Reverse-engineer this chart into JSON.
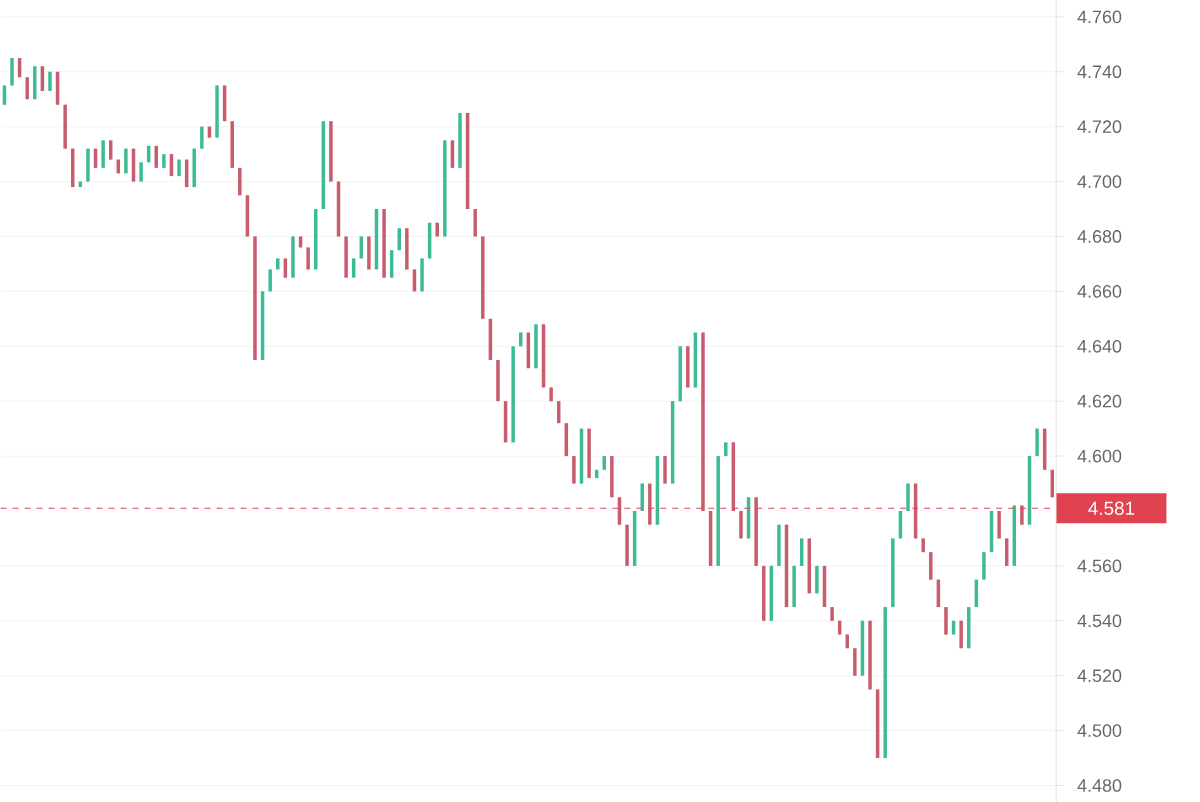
{
  "chart_data": {
    "type": "candlestick",
    "categories": [
      null,
      null,
      null,
      null,
      null,
      null,
      null,
      null,
      null,
      null,
      null,
      null,
      null,
      null,
      null,
      null,
      null,
      null,
      null,
      null,
      null,
      null,
      null,
      null,
      null,
      null,
      null,
      null,
      null,
      null,
      null,
      null,
      null,
      null,
      null,
      null,
      null,
      null,
      null,
      null,
      null,
      null,
      null,
      null,
      null,
      null,
      null,
      null,
      null,
      null,
      null,
      null,
      null,
      null,
      null,
      null,
      null,
      null,
      null,
      null,
      null,
      null,
      null,
      null,
      null,
      null,
      null,
      null,
      null,
      null,
      null,
      null,
      null,
      null,
      null,
      null,
      null,
      null,
      null,
      null,
      null,
      null,
      null,
      null,
      null,
      null,
      null,
      null,
      null,
      null,
      null,
      null,
      null,
      null,
      null,
      null,
      null,
      null,
      null,
      null,
      null,
      null,
      null,
      null,
      null,
      null,
      null,
      null,
      null,
      null,
      null,
      null,
      null,
      null,
      null,
      null,
      null,
      null,
      null,
      null,
      null,
      null,
      null,
      null,
      null,
      null,
      null,
      null,
      null,
      null,
      null,
      null,
      null,
      null,
      null,
      null,
      null,
      null,
      null
    ],
    "ohlc": [
      [
        4.728,
        4.735,
        4.728,
        4.735
      ],
      [
        4.735,
        4.745,
        4.735,
        4.745
      ],
      [
        4.745,
        4.745,
        4.738,
        4.738
      ],
      [
        4.738,
        4.738,
        4.73,
        4.73
      ],
      [
        4.73,
        4.742,
        4.73,
        4.742
      ],
      [
        4.742,
        4.742,
        4.733,
        4.733
      ],
      [
        4.733,
        4.74,
        4.733,
        4.74
      ],
      [
        4.74,
        4.74,
        4.728,
        4.728
      ],
      [
        4.728,
        4.728,
        4.712,
        4.712
      ],
      [
        4.712,
        4.712,
        4.698,
        4.698
      ],
      [
        4.698,
        4.7,
        4.698,
        4.7
      ],
      [
        4.7,
        4.712,
        4.7,
        4.712
      ],
      [
        4.712,
        4.712,
        4.705,
        4.705
      ],
      [
        4.705,
        4.715,
        4.705,
        4.715
      ],
      [
        4.715,
        4.715,
        4.708,
        4.708
      ],
      [
        4.708,
        4.708,
        4.703,
        4.703
      ],
      [
        4.703,
        4.712,
        4.703,
        4.712
      ],
      [
        4.712,
        4.712,
        4.7,
        4.7
      ],
      [
        4.7,
        4.707,
        4.7,
        4.707
      ],
      [
        4.707,
        4.713,
        4.707,
        4.713
      ],
      [
        4.713,
        4.713,
        4.705,
        4.705
      ],
      [
        4.705,
        4.71,
        4.705,
        4.71
      ],
      [
        4.71,
        4.71,
        4.702,
        4.702
      ],
      [
        4.702,
        4.708,
        4.702,
        4.708
      ],
      [
        4.708,
        4.708,
        4.698,
        4.698
      ],
      [
        4.698,
        4.712,
        4.698,
        4.712
      ],
      [
        4.712,
        4.72,
        4.712,
        4.72
      ],
      [
        4.72,
        4.72,
        4.716,
        4.716
      ],
      [
        4.716,
        4.735,
        4.716,
        4.735
      ],
      [
        4.735,
        4.735,
        4.722,
        4.722
      ],
      [
        4.722,
        4.722,
        4.705,
        4.705
      ],
      [
        4.705,
        4.705,
        4.695,
        4.695
      ],
      [
        4.695,
        4.695,
        4.68,
        4.68
      ],
      [
        4.68,
        4.68,
        4.635,
        4.635
      ],
      [
        4.635,
        4.66,
        4.635,
        4.66
      ],
      [
        4.66,
        4.668,
        4.66,
        4.668
      ],
      [
        4.668,
        4.672,
        4.668,
        4.672
      ],
      [
        4.672,
        4.672,
        4.665,
        4.665
      ],
      [
        4.665,
        4.68,
        4.665,
        4.68
      ],
      [
        4.68,
        4.68,
        4.676,
        4.676
      ],
      [
        4.676,
        4.676,
        4.668,
        4.668
      ],
      [
        4.668,
        4.69,
        4.668,
        4.69
      ],
      [
        4.69,
        4.722,
        4.69,
        4.722
      ],
      [
        4.722,
        4.722,
        4.7,
        4.7
      ],
      [
        4.7,
        4.7,
        4.68,
        4.68
      ],
      [
        4.68,
        4.68,
        4.665,
        4.665
      ],
      [
        4.665,
        4.672,
        4.665,
        4.672
      ],
      [
        4.672,
        4.68,
        4.672,
        4.68
      ],
      [
        4.68,
        4.68,
        4.668,
        4.668
      ],
      [
        4.668,
        4.69,
        4.668,
        4.69
      ],
      [
        4.69,
        4.69,
        4.665,
        4.665
      ],
      [
        4.665,
        4.675,
        4.665,
        4.675
      ],
      [
        4.675,
        4.683,
        4.675,
        4.683
      ],
      [
        4.683,
        4.683,
        4.668,
        4.668
      ],
      [
        4.668,
        4.668,
        4.66,
        4.66
      ],
      [
        4.66,
        4.672,
        4.66,
        4.672
      ],
      [
        4.672,
        4.685,
        4.672,
        4.685
      ],
      [
        4.685,
        4.685,
        4.68,
        4.68
      ],
      [
        4.68,
        4.715,
        4.68,
        4.715
      ],
      [
        4.715,
        4.715,
        4.705,
        4.705
      ],
      [
        4.705,
        4.725,
        4.705,
        4.725
      ],
      [
        4.725,
        4.725,
        4.69,
        4.69
      ],
      [
        4.69,
        4.69,
        4.68,
        4.68
      ],
      [
        4.68,
        4.68,
        4.65,
        4.65
      ],
      [
        4.65,
        4.65,
        4.635,
        4.635
      ],
      [
        4.635,
        4.635,
        4.62,
        4.62
      ],
      [
        4.62,
        4.62,
        4.605,
        4.605
      ],
      [
        4.605,
        4.64,
        4.605,
        4.64
      ],
      [
        4.64,
        4.645,
        4.64,
        4.645
      ],
      [
        4.645,
        4.645,
        4.632,
        4.632
      ],
      [
        4.632,
        4.648,
        4.632,
        4.648
      ],
      [
        4.648,
        4.648,
        4.625,
        4.625
      ],
      [
        4.625,
        4.625,
        4.62,
        4.62
      ],
      [
        4.62,
        4.62,
        4.612,
        4.612
      ],
      [
        4.612,
        4.612,
        4.6,
        4.6
      ],
      [
        4.6,
        4.6,
        4.59,
        4.59
      ],
      [
        4.59,
        4.61,
        4.59,
        4.61
      ],
      [
        4.61,
        4.61,
        4.592,
        4.592
      ],
      [
        4.592,
        4.595,
        4.592,
        4.595
      ],
      [
        4.595,
        4.6,
        4.595,
        4.6
      ],
      [
        4.6,
        4.6,
        4.585,
        4.585
      ],
      [
        4.585,
        4.585,
        4.575,
        4.575
      ],
      [
        4.575,
        4.575,
        4.56,
        4.56
      ],
      [
        4.56,
        4.58,
        4.56,
        4.58
      ],
      [
        4.58,
        4.59,
        4.58,
        4.59
      ],
      [
        4.59,
        4.59,
        4.575,
        4.575
      ],
      [
        4.575,
        4.6,
        4.575,
        4.6
      ],
      [
        4.6,
        4.6,
        4.59,
        4.59
      ],
      [
        4.59,
        4.62,
        4.59,
        4.62
      ],
      [
        4.62,
        4.64,
        4.62,
        4.64
      ],
      [
        4.64,
        4.64,
        4.625,
        4.625
      ],
      [
        4.625,
        4.645,
        4.625,
        4.645
      ],
      [
        4.645,
        4.645,
        4.58,
        4.58
      ],
      [
        4.58,
        4.58,
        4.56,
        4.56
      ],
      [
        4.56,
        4.6,
        4.56,
        4.6
      ],
      [
        4.6,
        4.605,
        4.6,
        4.605
      ],
      [
        4.605,
        4.605,
        4.58,
        4.58
      ],
      [
        4.58,
        4.58,
        4.57,
        4.57
      ],
      [
        4.57,
        4.585,
        4.57,
        4.585
      ],
      [
        4.585,
        4.585,
        4.56,
        4.56
      ],
      [
        4.56,
        4.56,
        4.54,
        4.54
      ],
      [
        4.54,
        4.56,
        4.54,
        4.56
      ],
      [
        4.56,
        4.575,
        4.56,
        4.575
      ],
      [
        4.575,
        4.575,
        4.545,
        4.545
      ],
      [
        4.545,
        4.56,
        4.545,
        4.56
      ],
      [
        4.56,
        4.57,
        4.56,
        4.57
      ],
      [
        4.57,
        4.57,
        4.55,
        4.55
      ],
      [
        4.55,
        4.56,
        4.55,
        4.56
      ],
      [
        4.56,
        4.56,
        4.545,
        4.545
      ],
      [
        4.545,
        4.545,
        4.54,
        4.54
      ],
      [
        4.54,
        4.54,
        4.535,
        4.535
      ],
      [
        4.535,
        4.535,
        4.53,
        4.53
      ],
      [
        4.53,
        4.53,
        4.52,
        4.52
      ],
      [
        4.52,
        4.54,
        4.52,
        4.54
      ],
      [
        4.54,
        4.54,
        4.515,
        4.515
      ],
      [
        4.515,
        4.515,
        4.49,
        4.49
      ],
      [
        4.49,
        4.545,
        4.49,
        4.545
      ],
      [
        4.545,
        4.57,
        4.545,
        4.57
      ],
      [
        4.57,
        4.58,
        4.57,
        4.58
      ],
      [
        4.58,
        4.59,
        4.58,
        4.59
      ],
      [
        4.59,
        4.59,
        4.57,
        4.57
      ],
      [
        4.57,
        4.57,
        4.565,
        4.565
      ],
      [
        4.565,
        4.565,
        4.555,
        4.555
      ],
      [
        4.555,
        4.555,
        4.545,
        4.545
      ],
      [
        4.545,
        4.545,
        4.535,
        4.535
      ],
      [
        4.535,
        4.54,
        4.535,
        4.54
      ],
      [
        4.54,
        4.54,
        4.53,
        4.53
      ],
      [
        4.53,
        4.545,
        4.53,
        4.545
      ],
      [
        4.545,
        4.555,
        4.545,
        4.555
      ],
      [
        4.555,
        4.565,
        4.555,
        4.565
      ],
      [
        4.565,
        4.58,
        4.565,
        4.58
      ],
      [
        4.58,
        4.58,
        4.57,
        4.57
      ],
      [
        4.57,
        4.57,
        4.56,
        4.56
      ],
      [
        4.56,
        4.582,
        4.56,
        4.582
      ],
      [
        4.582,
        4.582,
        4.575,
        4.575
      ],
      [
        4.575,
        4.6,
        4.575,
        4.6
      ],
      [
        4.6,
        4.61,
        4.6,
        4.61
      ],
      [
        4.61,
        4.61,
        4.595,
        4.595
      ],
      [
        4.595,
        4.595,
        4.585,
        4.585
      ]
    ],
    "ylim": [
      4.474,
      4.766
    ],
    "yticks": [
      {
        "value": 4.48,
        "label": "4.480"
      },
      {
        "value": 4.5,
        "label": "4.500"
      },
      {
        "value": 4.52,
        "label": "4.520"
      },
      {
        "value": 4.54,
        "label": "4.540"
      },
      {
        "value": 4.56,
        "label": "4.560"
      },
      {
        "value": 4.6,
        "label": "4.600"
      },
      {
        "value": 4.62,
        "label": "4.620"
      },
      {
        "value": 4.64,
        "label": "4.640"
      },
      {
        "value": 4.66,
        "label": "4.660"
      },
      {
        "value": 4.68,
        "label": "4.680"
      },
      {
        "value": 4.7,
        "label": "4.700"
      },
      {
        "value": 4.72,
        "label": "4.720"
      },
      {
        "value": 4.74,
        "label": "4.740"
      },
      {
        "value": 4.76,
        "label": "4.760"
      }
    ],
    "grid": "y",
    "ref_lines": [
      {
        "axis": "y",
        "value": 4.581,
        "label": "4.581",
        "color": "#e0434f",
        "line_style": "dashed"
      }
    ]
  }
}
